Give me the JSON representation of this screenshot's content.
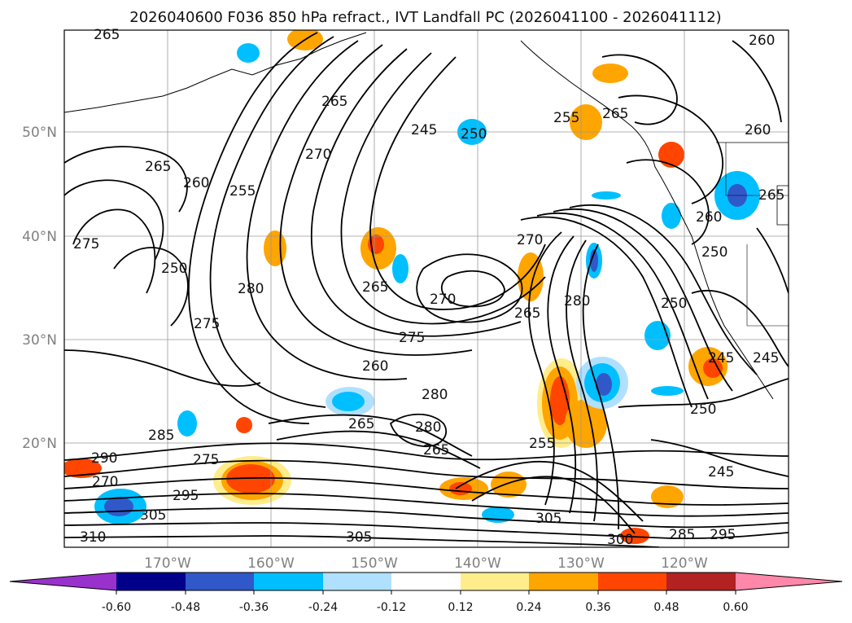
{
  "title": "2026040600 F036 850 hPa refract., IVT Landfall PC (2026041100 - 2026041112)",
  "map": {
    "lon_labels": [
      "170°W",
      "160°W",
      "150°W",
      "140°W",
      "130°W",
      "120°W"
    ],
    "lat_labels": [
      "50°N",
      "40°N",
      "30°N",
      "20°N"
    ],
    "contour_labels": [
      "265",
      "260",
      "250",
      "245",
      "255",
      "265",
      "270",
      "255",
      "260",
      "265",
      "275",
      "250",
      "280",
      "275",
      "270",
      "275",
      "265",
      "280",
      "265",
      "260",
      "280",
      "270",
      "265",
      "280",
      "265",
      "285",
      "275",
      "290",
      "270",
      "295",
      "305",
      "310",
      "305",
      "305",
      "300",
      "285",
      "295",
      "245",
      "250",
      "245",
      "245",
      "250",
      "260",
      "265",
      "250",
      "255",
      "265",
      "260"
    ],
    "contour_color": "#000000"
  },
  "colorbar": {
    "colors": [
      "#9932cc",
      "#00008b",
      "#3158c8",
      "#00bfff",
      "#b0e0ff",
      "#ffffff",
      "#ffec8b",
      "#ffa500",
      "#ff4500",
      "#b22222",
      "#ff88aa"
    ],
    "ticks": [
      "-0.60",
      "-0.48",
      "-0.36",
      "-0.24",
      "-0.12",
      "0.12",
      "0.24",
      "0.36",
      "0.48",
      "0.60"
    ]
  }
}
